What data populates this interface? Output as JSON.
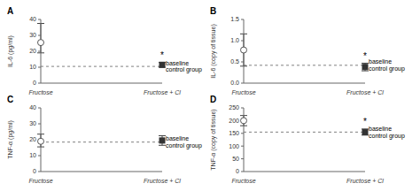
{
  "chart_data": [
    {
      "type": "scatter",
      "title": "A",
      "ylabel": "IL-6 (pg/ml)",
      "categories": [
        "Fructose",
        "Fructose + Cl"
      ],
      "series": [
        {
          "marker": "open_circle",
          "color": "#555555",
          "values": [
            25.5,
            null
          ],
          "yerr_low": [
            6.5,
            null
          ],
          "yerr_high": [
            12.0,
            null
          ]
        },
        {
          "marker": "square",
          "color": "#333333",
          "values": [
            null,
            11.5
          ],
          "yerr_low": [
            null,
            1.5
          ],
          "yerr_high": [
            null,
            1.5
          ]
        }
      ],
      "baseline": 10.5,
      "baseline_label": "baseline\ncontrol group",
      "annotations": [
        {
          "text": "*",
          "x": "Fructose + Cl"
        }
      ],
      "ylim": [
        0,
        40
      ],
      "yticks": [
        0,
        10,
        20,
        30,
        40
      ],
      "grid": false
    },
    {
      "type": "scatter",
      "title": "B",
      "ylabel": "IL-6 (copy of tissue)",
      "categories": [
        "Fructose",
        "Fructose + Cl"
      ],
      "series": [
        {
          "marker": "open_circle",
          "color": "#555555",
          "values": [
            0.78,
            null
          ],
          "yerr_low": [
            0.38,
            null
          ],
          "yerr_high": [
            0.38,
            null
          ]
        },
        {
          "marker": "square",
          "color": "#333333",
          "values": [
            null,
            0.38
          ],
          "yerr_low": [
            null,
            0.09
          ],
          "yerr_high": [
            null,
            0.09
          ]
        }
      ],
      "baseline": 0.42,
      "baseline_label": "baseline\ncontrol group",
      "annotations": [
        {
          "text": "*",
          "x": "Fructose + Cl"
        }
      ],
      "ylim": [
        0,
        1.5
      ],
      "yticks": [
        {
          "value": 0,
          "label": "0.0"
        },
        0.5,
        {
          "value": 1,
          "label": "1.0"
        },
        1.5
      ],
      "grid": false
    },
    {
      "type": "scatter",
      "title": "C",
      "ylabel": "TNF-α (pg/ml)",
      "categories": [
        "Fructose",
        "Fructose + Cl"
      ],
      "series": [
        {
          "marker": "open_circle",
          "color": "#555555",
          "values": [
            19.0,
            null
          ],
          "yerr_low": [
            3.5,
            null
          ],
          "yerr_high": [
            4.5,
            null
          ]
        },
        {
          "marker": "square",
          "color": "#333333",
          "values": [
            null,
            19.5
          ],
          "yerr_low": [
            null,
            3.0
          ],
          "yerr_high": [
            null,
            3.0
          ]
        }
      ],
      "baseline": 18.5,
      "baseline_label": "baseline\ncontrol group",
      "ylim": [
        0,
        40
      ],
      "yticks": [
        0,
        10,
        20,
        30,
        40
      ],
      "grid": false
    },
    {
      "type": "scatter",
      "title": "D",
      "ylabel": "TNF-α (copy of tissue)",
      "categories": [
        "Fructose",
        "Fructose + Cl"
      ],
      "series": [
        {
          "marker": "open_circle",
          "color": "#555555",
          "values": [
            200,
            null
          ],
          "yerr_low": [
            20,
            null
          ],
          "yerr_high": [
            20,
            null
          ]
        },
        {
          "marker": "square",
          "color": "#333333",
          "values": [
            null,
            155
          ],
          "yerr_low": [
            null,
            12
          ],
          "yerr_high": [
            null,
            12
          ]
        }
      ],
      "baseline": 155,
      "baseline_label": "baseline\ncontrol group",
      "annotations": [
        {
          "text": "*",
          "x": "Fructose + Cl"
        }
      ],
      "ylim": [
        0,
        250
      ],
      "yticks": [
        0,
        50,
        100,
        150,
        200,
        250
      ],
      "grid": false
    }
  ]
}
